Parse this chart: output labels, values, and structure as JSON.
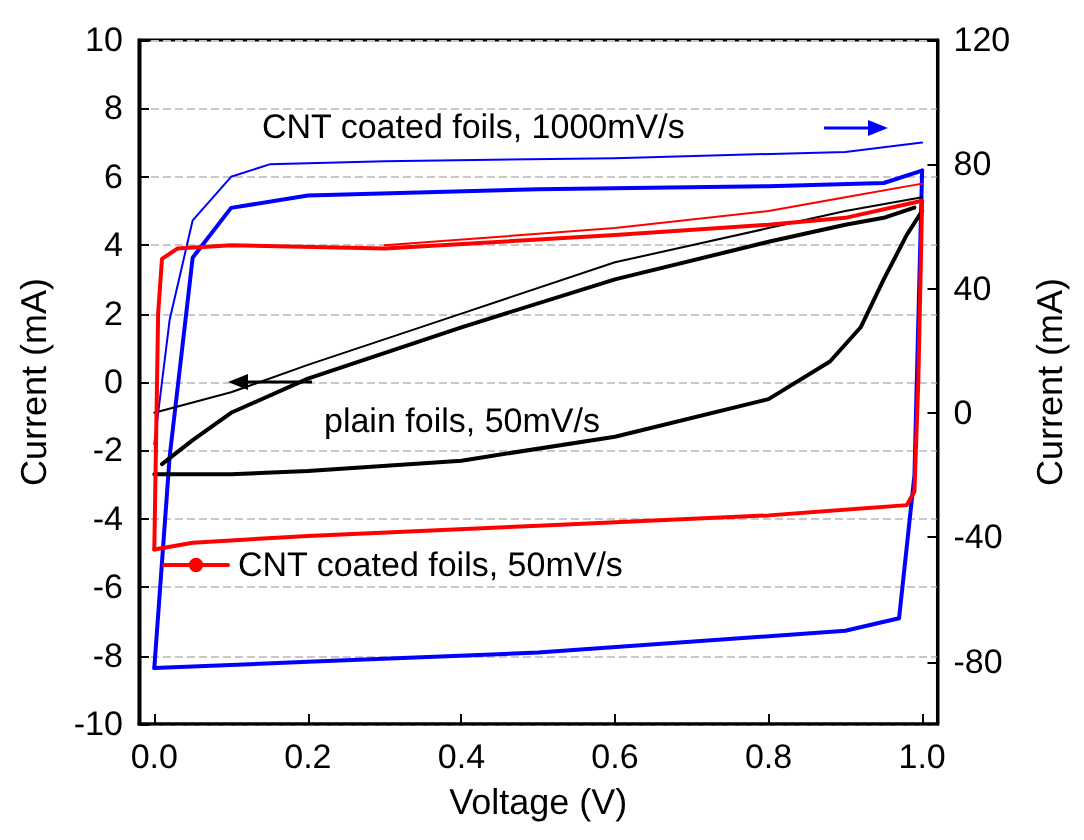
{
  "chart_data": {
    "type": "line",
    "xlabel": "Voltage (V)",
    "ylabel": "Current (mA)",
    "y2label": "Current (mA)",
    "xlim": [
      -0.02,
      1.02
    ],
    "xticks": [
      {
        "value": 0,
        "label": "0.0"
      },
      0.2,
      0.4,
      0.6,
      0.8,
      {
        "value": 1,
        "label": "1.0"
      }
    ],
    "ylim": [
      -10,
      10
    ],
    "yticks": [
      -10,
      -8,
      -6,
      -4,
      -2,
      0,
      2,
      4,
      6,
      8,
      10
    ],
    "y2lim": [
      -100,
      120
    ],
    "y2ticks": [
      -80,
      -40,
      0,
      40,
      80,
      120
    ],
    "grid": "y",
    "legend": "bottom left",
    "marker": "none",
    "line_style": "solid",
    "series": [
      {
        "name": "plain foils, 50mV/s",
        "color": "#000000",
        "x": [
          0,
          0.1,
          0.2,
          0.4,
          0.6,
          0.8,
          0.88,
          0.92,
          0.95,
          0.98,
          1.0
        ],
        "values": [
          -2.7,
          -2.7,
          -2.6,
          -2.3,
          -1.6,
          -0.5,
          0.6,
          1.6,
          3.0,
          4.3,
          5.0
        ]
      },
      {
        "color": "#000000",
        "x": [
          0.01,
          0.05,
          0.1,
          0.2,
          0.4,
          0.6,
          0.8,
          0.9,
          0.95,
          0.99
        ],
        "values": [
          -2.4,
          -1.7,
          -0.9,
          0.1,
          1.6,
          3.0,
          4.1,
          4.6,
          4.8,
          5.1
        ]
      },
      {
        "color": "#000000",
        "x": [
          0,
          0.1,
          0.2,
          0.4,
          0.6,
          0.8,
          0.9,
          1.0
        ],
        "values": [
          -0.9,
          -0.3,
          0.5,
          2.0,
          3.5,
          4.5,
          5.0,
          5.4
        ]
      },
      {
        "name": "CNT coated foils, 50mV/s",
        "color": "#ff0000",
        "x": [
          0,
          0.005,
          0.01,
          0.03,
          0.1,
          0.3,
          0.6,
          0.8,
          0.9,
          1.0
        ],
        "values": [
          -4.9,
          2.0,
          3.6,
          3.9,
          4.0,
          3.9,
          4.3,
          4.6,
          4.8,
          5.3
        ]
      },
      {
        "color": "#ff0000",
        "x": [
          0,
          0.05,
          0.2,
          0.5,
          0.8,
          0.98,
          0.99,
          0.995,
          1.0
        ],
        "values": [
          -4.9,
          -4.7,
          -4.5,
          -4.2,
          -3.9,
          -3.6,
          -3.2,
          0.0,
          5.3
        ]
      },
      {
        "color": "#ff0000",
        "x": [
          0.3,
          0.6,
          0.8,
          0.9,
          1.0
        ],
        "values": [
          4.0,
          4.5,
          5.0,
          5.4,
          5.8
        ]
      },
      {
        "name": "CNT coated foils, 1000mV/s",
        "color": "#0000ff",
        "axis": "y2",
        "x": [
          0,
          0.02,
          0.05,
          0.1,
          0.2,
          0.5,
          0.8,
          0.95,
          1.0
        ],
        "values": [
          -82,
          -14,
          50,
          66,
          70,
          72,
          73,
          74,
          78
        ]
      },
      {
        "color": "#0000ff",
        "axis": "y2",
        "x": [
          0,
          0.2,
          0.5,
          0.9,
          0.97,
          0.99,
          1.0
        ],
        "values": [
          -82,
          -80,
          -77,
          -70,
          -66,
          -20,
          78
        ]
      },
      {
        "color": "#0000ff",
        "axis": "y2",
        "x": [
          0,
          0.02,
          0.05,
          0.1,
          0.15,
          0.3,
          0.6,
          0.9,
          1.0
        ],
        "values": [
          -10,
          30,
          62,
          76,
          80,
          81,
          82,
          84,
          87
        ]
      }
    ]
  }
}
